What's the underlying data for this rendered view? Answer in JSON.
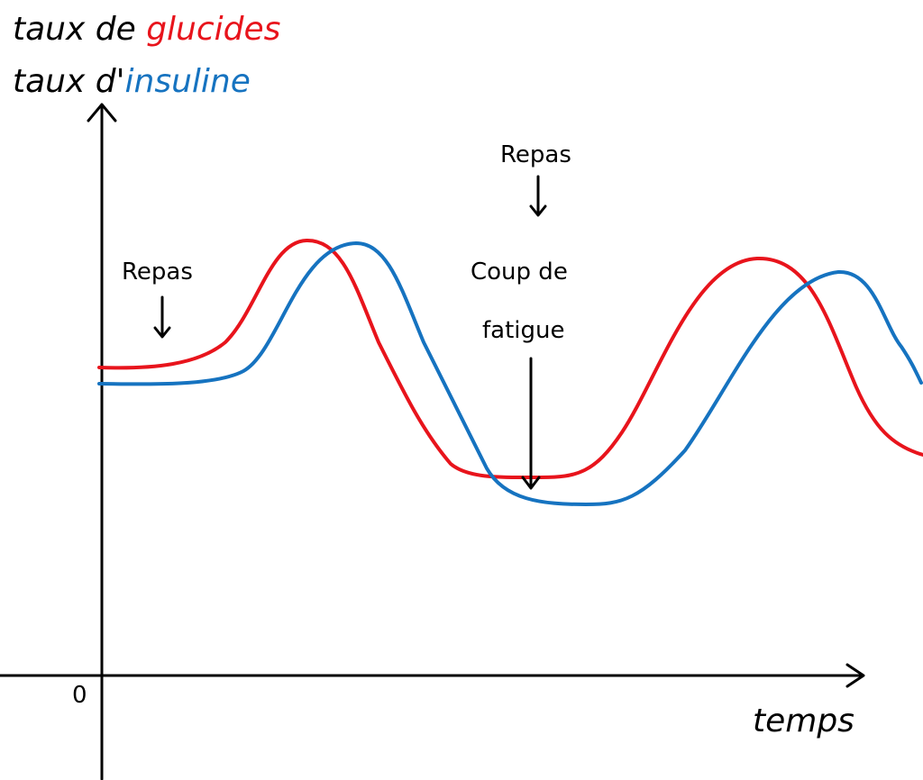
{
  "y_axis_label": {
    "line1": {
      "text": "taux de",
      "highlight": "glucides"
    },
    "line2": {
      "text": "taux d'",
      "highlight": "insuline"
    }
  },
  "x_axis_label": "temps",
  "origin_label": "0",
  "annotations": [
    {
      "label": "Repas"
    },
    {
      "label": "Repas"
    },
    {
      "lines": [
        "Coup de",
        "fatigue"
      ]
    }
  ]
}
